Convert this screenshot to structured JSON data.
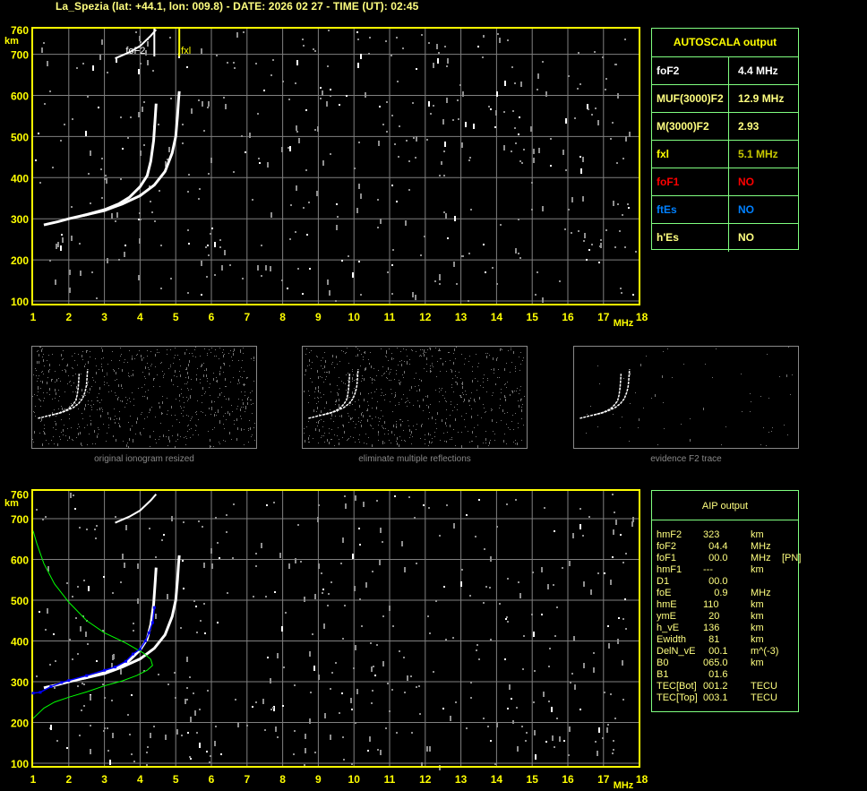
{
  "title": "La_Spezia (lat: +44.1, lon: 009.8) - DATE: 2026 02 27 - TIME (UT): 02:45",
  "colors": {
    "axis": "#ffff00",
    "grid": "#808080",
    "o_trace": "#ffffff",
    "aip_trace": "#0000ff",
    "profile": "#00ff00",
    "panel_border": "#80ff80"
  },
  "chart_data": [
    {
      "type": "scatter",
      "name": "top-ionogram",
      "xlabel": "MHz",
      "ylabel": "km",
      "xlim": [
        1,
        18
      ],
      "ylim": [
        100,
        760
      ],
      "xticks": [
        "1",
        "2",
        "3",
        "4",
        "5",
        "6",
        "7",
        "8",
        "9",
        "10",
        "11",
        "12",
        "13",
        "14",
        "15",
        "16",
        "17",
        "18"
      ],
      "yticks": [
        "100",
        "200",
        "300",
        "400",
        "500",
        "600",
        "700",
        "760"
      ],
      "grid": true,
      "annotations": [
        {
          "label": "foF2",
          "x": 4.4,
          "color": "#ffffff"
        },
        {
          "label": "fxl",
          "x": 5.1,
          "color": "#ffff00"
        }
      ],
      "traces": [
        {
          "mode": "o",
          "points": [
            [
              1.3,
              285
            ],
            [
              1.7,
              293
            ],
            [
              2.0,
              300
            ],
            [
              2.5,
              310
            ],
            [
              3.0,
              322
            ],
            [
              3.4,
              336
            ],
            [
              3.7,
              352
            ],
            [
              4.0,
              378
            ],
            [
              4.2,
              405
            ],
            [
              4.3,
              440
            ],
            [
              4.38,
              490
            ],
            [
              4.42,
              540
            ],
            [
              4.45,
              580
            ]
          ]
        },
        {
          "mode": "x",
          "points": [
            [
              2.4,
              308
            ],
            [
              3.0,
              320
            ],
            [
              3.5,
              336
            ],
            [
              4.0,
              356
            ],
            [
              4.4,
              382
            ],
            [
              4.7,
              415
            ],
            [
              4.9,
              460
            ],
            [
              5.0,
              500
            ],
            [
              5.05,
              550
            ],
            [
              5.08,
              590
            ],
            [
              5.1,
              610
            ]
          ]
        },
        {
          "mode": "second-hop",
          "points": [
            [
              3.3,
              690
            ],
            [
              3.7,
              705
            ],
            [
              4.0,
              720
            ],
            [
              4.3,
              745
            ],
            [
              4.45,
              760
            ]
          ]
        }
      ]
    },
    {
      "type": "scatter",
      "name": "bottom-ionogram",
      "xlabel": "MHz",
      "ylabel": "km",
      "xlim": [
        1,
        18
      ],
      "ylim": [
        100,
        760
      ],
      "xticks": [
        "1",
        "2",
        "3",
        "4",
        "5",
        "6",
        "7",
        "8",
        "9",
        "10",
        "11",
        "12",
        "13",
        "14",
        "15",
        "16",
        "17",
        "18"
      ],
      "yticks": [
        "100",
        "200",
        "300",
        "400",
        "500",
        "600",
        "700",
        "760"
      ],
      "grid": true,
      "aip_trace": [
        [
          1.0,
          272
        ],
        [
          1.2,
          274
        ],
        [
          1.5,
          288
        ],
        [
          1.8,
          298
        ],
        [
          2.0,
          303
        ],
        [
          2.5,
          315
        ],
        [
          3.0,
          328
        ],
        [
          3.3,
          336
        ],
        [
          3.6,
          350
        ],
        [
          3.8,
          368
        ],
        [
          4.0,
          380
        ],
        [
          4.15,
          400
        ],
        [
          4.25,
          420
        ],
        [
          4.35,
          445
        ],
        [
          4.4,
          482
        ]
      ],
      "profile": [
        [
          1.0,
          210
        ],
        [
          1.3,
          235
        ],
        [
          1.6,
          250
        ],
        [
          2.0,
          262
        ],
        [
          2.5,
          275
        ],
        [
          3.0,
          290
        ],
        [
          3.5,
          302
        ],
        [
          3.9,
          315
        ],
        [
          4.2,
          328
        ],
        [
          4.35,
          340
        ],
        [
          4.3,
          355
        ],
        [
          4.1,
          370
        ],
        [
          3.6,
          395
        ],
        [
          3.0,
          420
        ],
        [
          2.5,
          450
        ],
        [
          2.0,
          495
        ],
        [
          1.6,
          540
        ],
        [
          1.3,
          590
        ],
        [
          1.1,
          640
        ],
        [
          1.0,
          670
        ]
      ]
    }
  ],
  "thumbnails": [
    {
      "caption": "original ionogram resized"
    },
    {
      "caption": "eliminate multiple reflections"
    },
    {
      "caption": "evidence F2 trace"
    }
  ],
  "autoscala": {
    "header": "AUTOSCALA output",
    "rows": [
      {
        "key": "foF2",
        "value": "4.4 MHz",
        "key_color": "#ffffff",
        "value_color": "#ffffff"
      },
      {
        "key": "MUF(3000)F2",
        "value": "12.9 MHz",
        "key_color": "#ffff80",
        "value_color": "#ffff80"
      },
      {
        "key": "M(3000)F2",
        "value": "2.93",
        "key_color": "#ffff80",
        "value_color": "#ffff80"
      },
      {
        "key": "fxl",
        "value": "5.1 MHz",
        "key_color": "#ffff00",
        "value_color": "#c8c800"
      },
      {
        "key": "foF1",
        "value": "NO",
        "key_color": "#ff0000",
        "value_color": "#ff0000"
      },
      {
        "key": "ftEs",
        "value": "NO",
        "key_color": "#0080ff",
        "value_color": "#0080ff"
      },
      {
        "key": "h'Es",
        "value": "NO",
        "key_color": "#ffff80",
        "value_color": "#ffff80"
      }
    ]
  },
  "aip": {
    "header": "AIP output",
    "rows": [
      {
        "k": "hmF2",
        "v": "323",
        "u": "km",
        "x": ""
      },
      {
        "k": "foF2",
        "v": "  04.4",
        "u": "MHz",
        "x": ""
      },
      {
        "k": "foF1",
        "v": "  00.0",
        "u": "MHz",
        "x": "[PN]"
      },
      {
        "k": "hmF1",
        "v": "---",
        "u": "km",
        "x": ""
      },
      {
        "k": "D1",
        "v": "  00.0",
        "u": "",
        "x": ""
      },
      {
        "k": "foE",
        "v": "    0.9",
        "u": "MHz",
        "x": ""
      },
      {
        "k": "hmE",
        "v": "110",
        "u": "km",
        "x": ""
      },
      {
        "k": "ymE",
        "v": "  20",
        "u": "km",
        "x": ""
      },
      {
        "k": "h_vE",
        "v": "136",
        "u": "km",
        "x": ""
      },
      {
        "k": "Ewidth",
        "v": "  81",
        "u": "km",
        "x": ""
      },
      {
        "k": "DelN_vE",
        "v": "  00.1",
        "u": "m^(-3)",
        "x": ""
      },
      {
        "k": "B0",
        "v": "065.0",
        "u": "km",
        "x": ""
      },
      {
        "k": "B1",
        "v": "  01.6",
        "u": "",
        "x": ""
      },
      {
        "k": "TEC[Bot]",
        "v": "001.2",
        "u": "TECU",
        "x": ""
      },
      {
        "k": "TEC[Top]",
        "v": "003.1",
        "u": "TECU",
        "x": ""
      }
    ]
  }
}
